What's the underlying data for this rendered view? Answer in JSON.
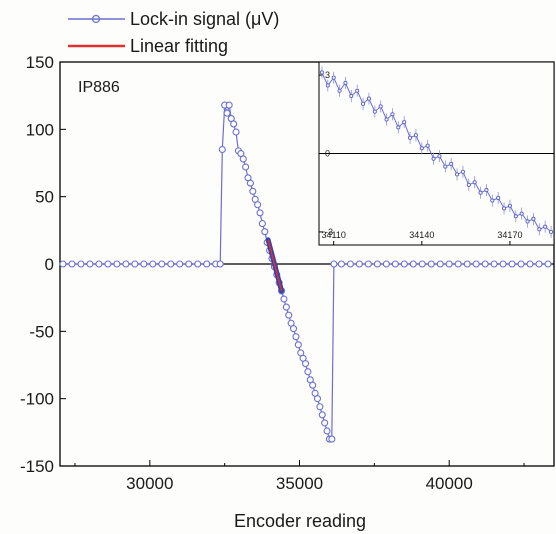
{
  "chart_data": [
    {
      "type": "line",
      "title": "",
      "xlabel": "Encoder reading",
      "ylabel": "",
      "xlim": [
        27000,
        43500
      ],
      "ylim": [
        -150,
        150
      ],
      "x_ticks": [
        "30000",
        "35000",
        "40000"
      ],
      "y_ticks": [
        "150",
        "100",
        "50",
        "0",
        "-50",
        "-100",
        "-150"
      ],
      "annotation": "IP886",
      "legend": {
        "placement": "top-left, above plot",
        "entries": [
          "Lock-in signal (μV)",
          "Linear fitting"
        ]
      },
      "colors": {
        "signal": "#6a6fd0",
        "fit": "#e0302a",
        "zero_line": "#000000"
      },
      "series": [
        {
          "name": "Lock-in signal (μV)",
          "marker": "open-circle",
          "x": [
            27100,
            27400,
            27700,
            28000,
            28300,
            28600,
            28900,
            29200,
            29500,
            29800,
            30100,
            30400,
            30700,
            31000,
            31300,
            31600,
            31900,
            32200,
            32350,
            32420,
            32500,
            32580,
            32650,
            32720,
            32800,
            32880,
            32960,
            33040,
            33120,
            33200,
            33280,
            33360,
            33440,
            33520,
            33600,
            33680,
            33760,
            33840,
            33920,
            34000,
            34080,
            34160,
            34240,
            34320,
            34400,
            34480,
            34560,
            34640,
            34720,
            34800,
            34880,
            34960,
            35040,
            35120,
            35200,
            35280,
            35360,
            35440,
            35520,
            35600,
            35680,
            35760,
            35840,
            35920,
            36000,
            36080,
            36150,
            36400,
            36700,
            37000,
            37300,
            37600,
            37900,
            38200,
            38500,
            38800,
            39100,
            39400,
            39700,
            40000,
            40300,
            40600,
            40900,
            41200,
            41500,
            41800,
            42100,
            42400,
            42700,
            43000,
            43300
          ],
          "y": [
            0,
            0,
            0,
            0,
            0,
            0,
            0,
            0,
            0,
            0,
            0,
            0,
            0,
            0,
            0,
            0,
            0,
            0,
            0,
            85,
            118,
            112,
            118,
            108,
            104,
            98,
            84,
            82,
            78,
            72,
            64,
            60,
            54,
            48,
            44,
            38,
            30,
            24,
            16,
            10,
            4,
            -2,
            -8,
            -14,
            -20,
            -26,
            -32,
            -38,
            -44,
            -48,
            -54,
            -60,
            -66,
            -70,
            -74,
            -80,
            -86,
            -90,
            -96,
            -100,
            -106,
            -112,
            -118,
            -124,
            -130,
            -130,
            0,
            0,
            0,
            0,
            0,
            0,
            0,
            0,
            0,
            0,
            0,
            0,
            0,
            0,
            0,
            0,
            0,
            0,
            0,
            0,
            0,
            0,
            0,
            0,
            0
          ]
        },
        {
          "name": "Linear fitting",
          "x": [
            34110,
            34180
          ],
          "y": [
            3,
            -3
          ]
        }
      ]
    },
    {
      "type": "line",
      "title": "",
      "xlabel": "",
      "ylabel": "",
      "xlim": [
        34105,
        34185
      ],
      "ylim": [
        -3.5,
        3.5
      ],
      "x_ticks": [
        "34110",
        "34140",
        "34170"
      ],
      "y_ticks": [
        "3",
        "0",
        "-3"
      ],
      "series": [
        {
          "x": [
            34106,
            34108,
            34110,
            34112,
            34114,
            34116,
            34118,
            34120,
            34122,
            34124,
            34126,
            34128,
            34130,
            34132,
            34134,
            34136,
            34138,
            34140,
            34142,
            34144,
            34146,
            34148,
            34150,
            34152,
            34154,
            34156,
            34158,
            34160,
            34162,
            34164,
            34166,
            34168,
            34170,
            34172,
            34174,
            34176,
            34178,
            34180,
            34182,
            34184
          ],
          "y": [
            3.1,
            2.6,
            2.9,
            2.4,
            2.7,
            2.2,
            2.4,
            1.9,
            2.1,
            1.6,
            1.8,
            1.3,
            1.5,
            1.0,
            1.2,
            0.6,
            0.7,
            0.2,
            0.3,
            -0.2,
            -0.1,
            -0.5,
            -0.4,
            -0.8,
            -0.7,
            -1.2,
            -1.1,
            -1.5,
            -1.4,
            -1.8,
            -1.7,
            -2.1,
            -2.0,
            -2.4,
            -2.3,
            -2.6,
            -2.5,
            -2.9,
            -2.8,
            -3.0
          ]
        }
      ]
    }
  ]
}
